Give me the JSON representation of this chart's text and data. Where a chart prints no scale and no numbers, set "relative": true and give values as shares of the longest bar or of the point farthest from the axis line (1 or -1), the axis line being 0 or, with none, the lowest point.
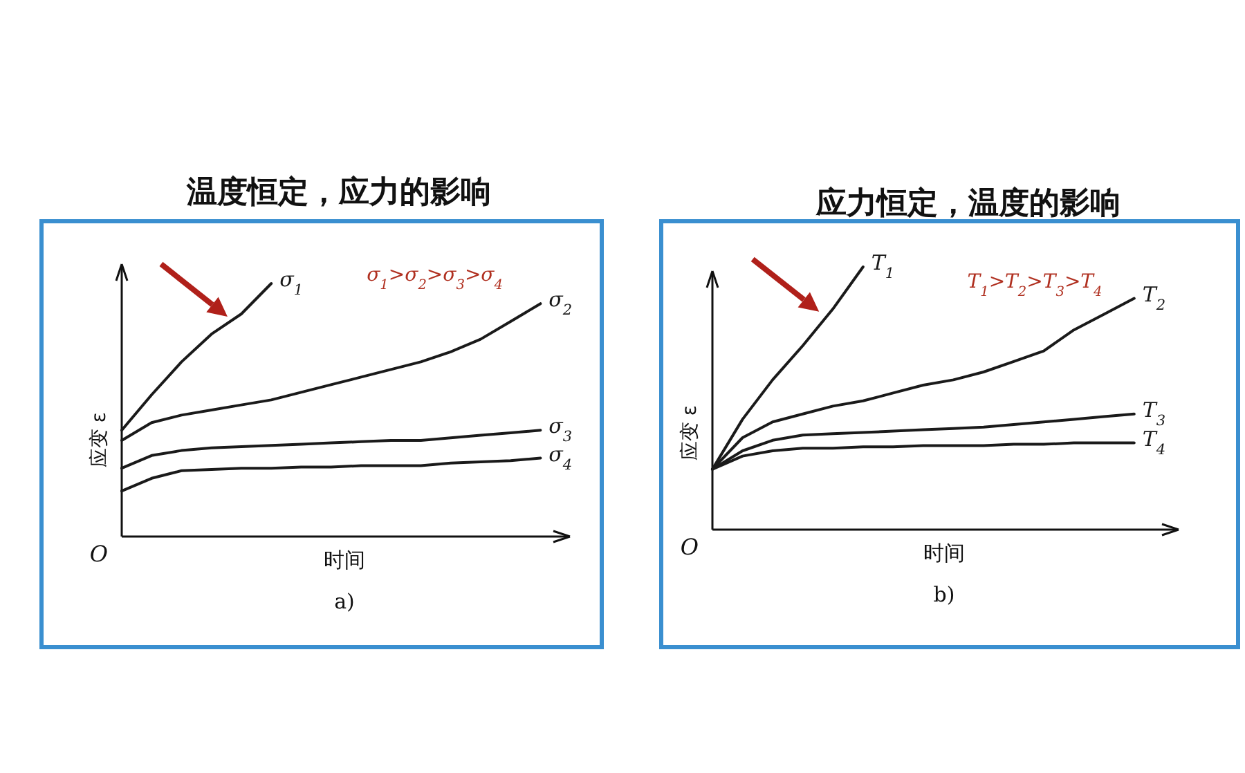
{
  "chart_data": [
    {
      "type": "line",
      "title": "温度恒定，应力的影响",
      "xlabel": "时间",
      "ylabel": "应变 ε",
      "relative": true,
      "marker": "none",
      "line_style": "solid",
      "categories": [
        null,
        null,
        null,
        null,
        null,
        null,
        null,
        null,
        null,
        null,
        null,
        null,
        null,
        null,
        null
      ],
      "annotations": [
        "O",
        "σ$_{1}$>σ$_{2}$>σ$_{3}$>σ$_{4}$",
        "a)"
      ],
      "series": [
        {
          "name": "σ$_{1}$",
          "color": "#1a1a1a",
          "values": [
            0.42,
            0.56,
            0.69,
            0.8,
            0.88,
            1.0,
            null,
            null,
            null,
            null,
            null,
            null,
            null,
            null,
            null
          ]
        },
        {
          "name": "σ$_{2}$",
          "color": "#1a1a1a",
          "values": [
            0.38,
            0.45,
            0.48,
            0.5,
            0.52,
            0.54,
            0.57,
            0.6,
            0.63,
            0.66,
            0.69,
            0.73,
            0.78,
            0.85,
            0.92
          ]
        },
        {
          "name": "σ$_{3}$",
          "color": "#1a1a1a",
          "values": [
            0.27,
            0.32,
            0.34,
            0.35,
            0.355,
            0.36,
            0.365,
            0.37,
            0.375,
            0.38,
            0.38,
            0.39,
            0.4,
            0.41,
            0.42
          ]
        },
        {
          "name": "σ$_{4}$",
          "color": "#1a1a1a",
          "values": [
            0.18,
            0.23,
            0.26,
            0.265,
            0.27,
            0.27,
            0.275,
            0.275,
            0.28,
            0.28,
            0.28,
            0.29,
            0.295,
            0.3,
            0.31
          ]
        }
      ]
    },
    {
      "type": "line",
      "title": "应力恒定，温度的影响",
      "xlabel": "时间",
      "ylabel": "应变 ε",
      "relative": true,
      "marker": "none",
      "line_style": "solid",
      "categories": [
        null,
        null,
        null,
        null,
        null,
        null,
        null,
        null,
        null,
        null,
        null,
        null,
        null,
        null,
        null
      ],
      "annotations": [
        "O",
        "T$_{1}$>T$_{2}$>T$_{3}$>T$_{4}$",
        "b)"
      ],
      "series": [
        {
          "name": "T$_{1}$",
          "color": "#1a1a1a",
          "values": [
            0.23,
            0.42,
            0.57,
            0.7,
            0.84,
            1.0,
            null,
            null,
            null,
            null,
            null,
            null,
            null,
            null,
            null
          ]
        },
        {
          "name": "T$_{2}$",
          "color": "#1a1a1a",
          "values": [
            0.23,
            0.35,
            0.41,
            0.44,
            0.47,
            0.49,
            0.52,
            0.55,
            0.57,
            0.6,
            0.64,
            0.68,
            0.76,
            0.82,
            0.88
          ]
        },
        {
          "name": "T$_{3}$",
          "color": "#1a1a1a",
          "values": [
            0.23,
            0.3,
            0.34,
            0.36,
            0.365,
            0.37,
            0.375,
            0.38,
            0.385,
            0.39,
            0.4,
            0.41,
            0.42,
            0.43,
            0.44
          ]
        },
        {
          "name": "T$_{4}$",
          "color": "#1a1a1a",
          "values": [
            0.23,
            0.28,
            0.3,
            0.31,
            0.31,
            0.315,
            0.315,
            0.32,
            0.32,
            0.32,
            0.325,
            0.325,
            0.33,
            0.33,
            0.33
          ]
        }
      ]
    }
  ]
}
